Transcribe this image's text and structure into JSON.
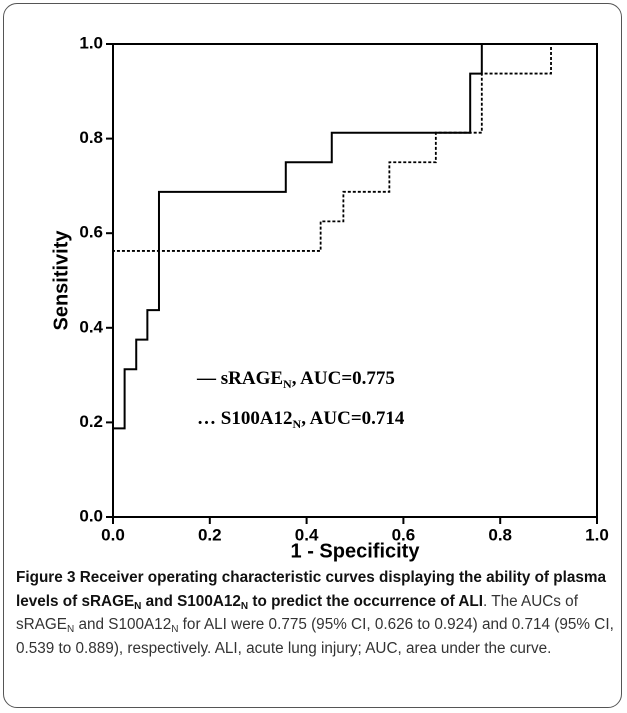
{
  "chart_data": {
    "type": "line",
    "xlabel": "1 - Specificity",
    "ylabel": "Sensitivity",
    "xlim": [
      0,
      1
    ],
    "ylim": [
      0,
      1
    ],
    "xticks": [
      {
        "value": 0,
        "label": "0.0"
      },
      0.2,
      0.4,
      0.6,
      0.8,
      {
        "value": 1,
        "label": "1.0"
      }
    ],
    "yticks": [
      {
        "value": 0,
        "label": "0.0"
      },
      0.2,
      0.4,
      0.6,
      0.8,
      {
        "value": 1,
        "label": "1.0"
      }
    ],
    "series": [
      {
        "name": "sRAGE",
        "subscript": "N",
        "marker": "—",
        "annotation": ", AUC=0.775",
        "color": "#000000",
        "dash": "solid",
        "x": [
          0,
          0,
          0.024,
          0.024,
          0.048,
          0.048,
          0.071,
          0.071,
          0.095,
          0.095,
          0.357,
          0.357,
          0.452,
          0.452,
          0.738,
          0.738,
          0.762,
          0.762,
          1
        ],
        "values": [
          0,
          0.1875,
          0.1875,
          0.3125,
          0.3125,
          0.375,
          0.375,
          0.4375,
          0.4375,
          0.6875,
          0.6875,
          0.75,
          0.75,
          0.8125,
          0.8125,
          0.9375,
          0.9375,
          1,
          1
        ]
      },
      {
        "name": "S100A12",
        "subscript": "N",
        "marker": "…",
        "annotation": ", AUC=0.714",
        "color": "#000000",
        "dash": "dotted",
        "x": [
          0,
          0,
          0.429,
          0.429,
          0.476,
          0.476,
          0.571,
          0.571,
          0.667,
          0.667,
          0.762,
          0.762,
          0.905,
          0.905,
          1
        ],
        "values": [
          0,
          0.5625,
          0.5625,
          0.625,
          0.625,
          0.6875,
          0.6875,
          0.75,
          0.75,
          0.8125,
          0.8125,
          0.9375,
          0.9375,
          1,
          1
        ]
      }
    ]
  },
  "caption": {
    "runs": [
      {
        "text": "Figure 3 Receiver operating characteristic curves displaying the ability of plasma levels of sRAGE",
        "bold": true
      },
      {
        "text": "N",
        "bold": true,
        "sub": true
      },
      {
        "text": " and S100A12",
        "bold": true
      },
      {
        "text": "N",
        "bold": true,
        "sub": true
      },
      {
        "text": " to predict the occurrence of ALI",
        "bold": true
      },
      {
        "text": ". The AUCs of sRAGE"
      },
      {
        "text": "N",
        "sub": true
      },
      {
        "text": " and S100A12"
      },
      {
        "text": "N",
        "sub": true
      },
      {
        "text": " for ALI were 0.775 (95% CI, 0.626 to 0.924) and 0.714 (95% CI, 0.539 to 0.889), respectively. ALI, acute lung injury; AUC, area under the curve."
      }
    ]
  }
}
